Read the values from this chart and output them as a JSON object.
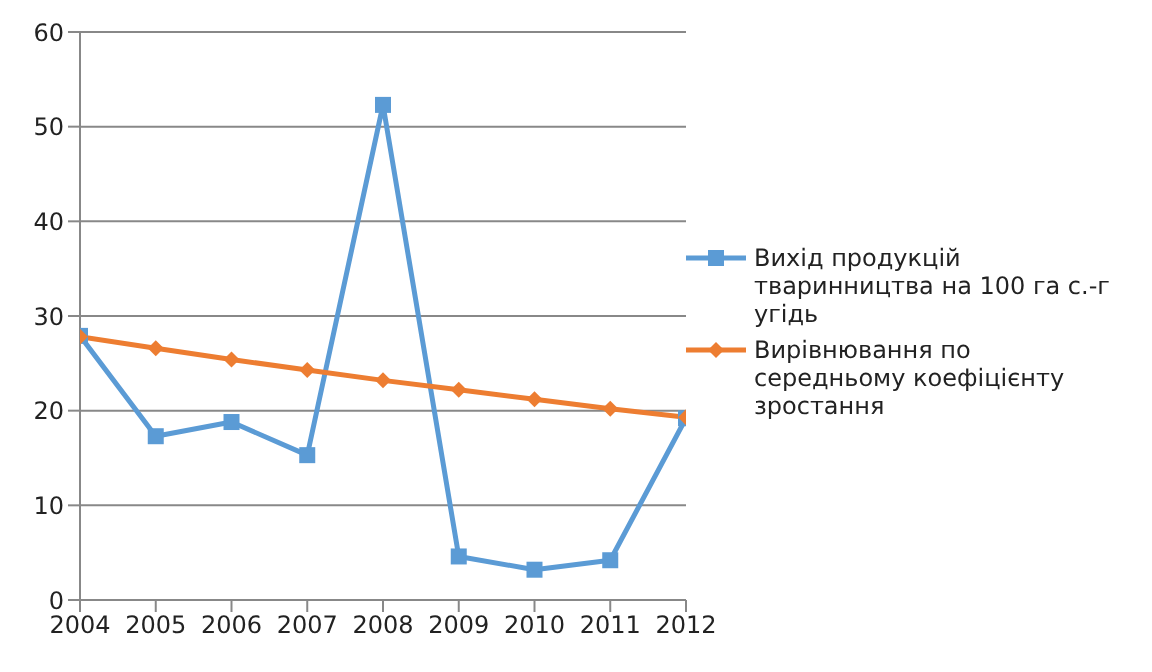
{
  "chart_data": {
    "type": "line",
    "x": [
      2004,
      2005,
      2006,
      2007,
      2008,
      2009,
      2010,
      2011,
      2012
    ],
    "xlim": [
      2004,
      2012
    ],
    "xticks": [
      2004,
      2005,
      2006,
      2007,
      2008,
      2009,
      2010,
      2011,
      2012
    ],
    "ylim": [
      0,
      60
    ],
    "yticks": [
      0,
      10,
      20,
      30,
      40,
      50,
      60
    ],
    "grid": "y",
    "legend": "right",
    "series": [
      {
        "name": "Вихід продукцій тваринництва на 100 га с.-г угідь",
        "color": "#5b9bd5",
        "marker": "square",
        "values": [
          27.9,
          17.3,
          18.8,
          15.3,
          52.3,
          4.6,
          3.2,
          4.2,
          19.2
        ]
      },
      {
        "name": "Вирівнювання по середньому коефіцієнту зростання",
        "color": "#ed7d31",
        "marker": "diamond",
        "values": [
          27.8,
          26.6,
          25.4,
          24.3,
          23.2,
          22.2,
          21.2,
          20.2,
          19.3
        ]
      }
    ]
  }
}
